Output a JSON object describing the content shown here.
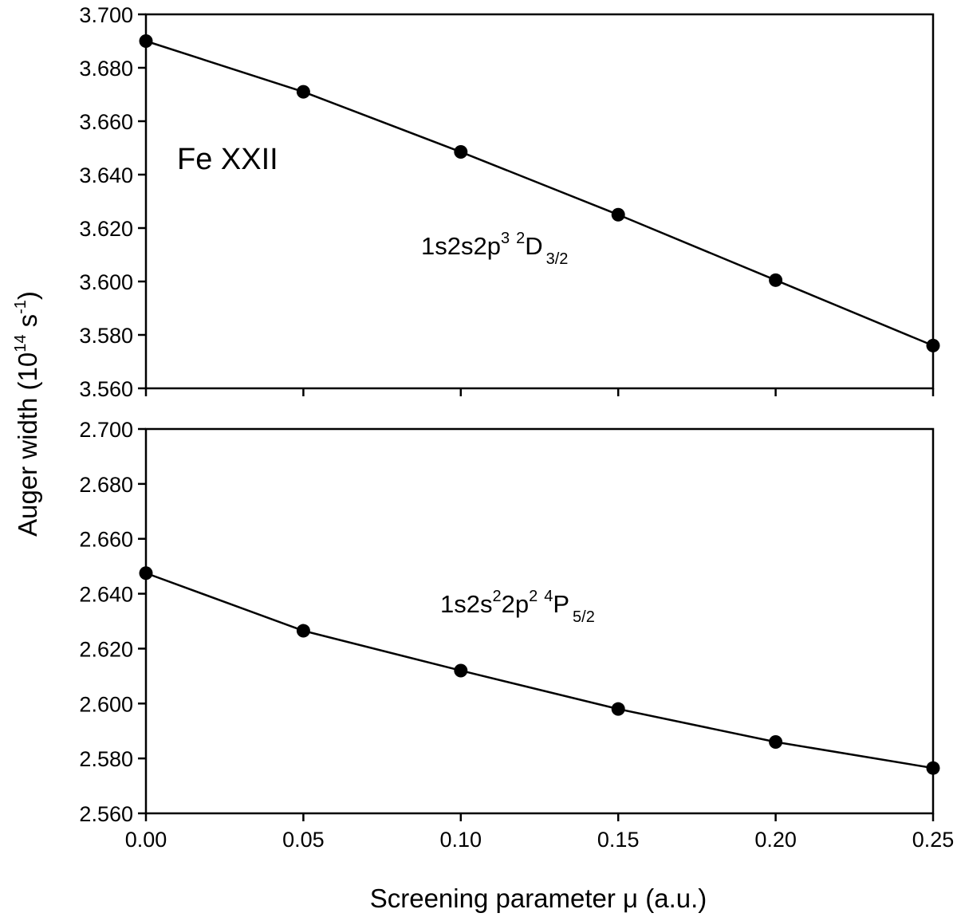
{
  "chart_data": [
    {
      "type": "line",
      "panel": "top",
      "x": [
        0.0,
        0.05,
        0.1,
        0.15,
        0.2,
        0.25
      ],
      "values": [
        3.69,
        3.671,
        3.6485,
        3.625,
        3.6005,
        3.576
      ],
      "ylim": [
        3.56,
        3.7
      ],
      "yticks": [
        "3.560",
        "3.580",
        "3.600",
        "3.620",
        "3.640",
        "3.660",
        "3.680",
        "3.700"
      ],
      "annotations": {
        "ion": "Fe XXII",
        "state": {
          "base": "1s2s2p",
          "sup1": "3",
          "sup2": "2",
          "term": "D",
          "sub": "3/2"
        }
      },
      "marker": "filled-circle",
      "color": "#000000"
    },
    {
      "type": "line",
      "panel": "bottom",
      "x": [
        0.0,
        0.05,
        0.1,
        0.15,
        0.2,
        0.25
      ],
      "values": [
        2.6475,
        2.6265,
        2.612,
        2.598,
        2.586,
        2.5765
      ],
      "ylim": [
        2.56,
        2.7
      ],
      "yticks": [
        "2.560",
        "2.580",
        "2.600",
        "2.620",
        "2.640",
        "2.660",
        "2.680",
        "2.700"
      ],
      "annotations": {
        "state": {
          "base1": "1s2s",
          "sup1": "2",
          "base2": "2p",
          "sup2": "2",
          "sup3": "4",
          "term": "P",
          "sub": "5/2"
        }
      },
      "marker": "filled-circle",
      "color": "#000000"
    }
  ],
  "shared": {
    "xlim": [
      0.0,
      0.25
    ],
    "xticks": [
      "0.00",
      "0.05",
      "0.10",
      "0.15",
      "0.20",
      "0.25"
    ],
    "xlabel": "Screening parameter μ (a.u.)",
    "ylabel": {
      "main": "Auger width (10",
      "sup1": "14",
      "mid": " s",
      "sup2": "-1",
      "end": ")"
    }
  }
}
